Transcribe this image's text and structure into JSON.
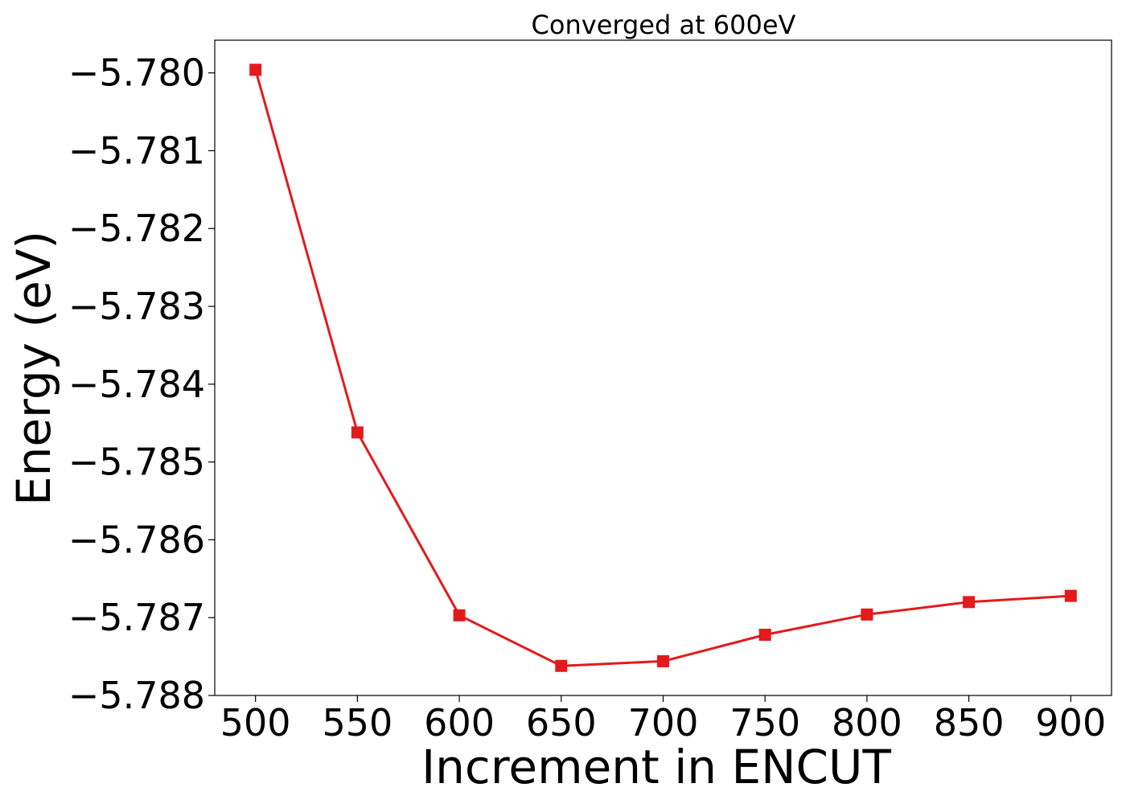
{
  "chart_data": {
    "type": "line",
    "title": "Converged at 600eV",
    "xlabel": "Increment in ENCUT",
    "ylabel": "Energy (eV)",
    "x": [
      500,
      550,
      600,
      650,
      700,
      750,
      800,
      850,
      900
    ],
    "series": [
      {
        "values": [
          -5.77996,
          -5.78462,
          -5.78697,
          -5.78762,
          -5.78756,
          -5.78722,
          -5.78696,
          -5.7868,
          -5.78672
        ],
        "color": "#e41a1c",
        "marker": "square"
      }
    ],
    "xticks": [
      500,
      550,
      600,
      650,
      700,
      750,
      800,
      850,
      900
    ],
    "xtick_labels": [
      "500",
      "550",
      "600",
      "650",
      "700",
      "750",
      "800",
      "850",
      "900"
    ],
    "yticks": [
      -5.78,
      -5.781,
      -5.782,
      -5.783,
      -5.784,
      -5.785,
      -5.786,
      -5.787,
      -5.788
    ],
    "ytick_labels": [
      "−5.780",
      "−5.781",
      "−5.782",
      "−5.783",
      "−5.784",
      "−5.785",
      "−5.786",
      "−5.787",
      "−5.788"
    ],
    "xlim": [
      480,
      920
    ],
    "ylim": [
      -5.788,
      -5.77958
    ],
    "grid": false,
    "legend": "none"
  }
}
